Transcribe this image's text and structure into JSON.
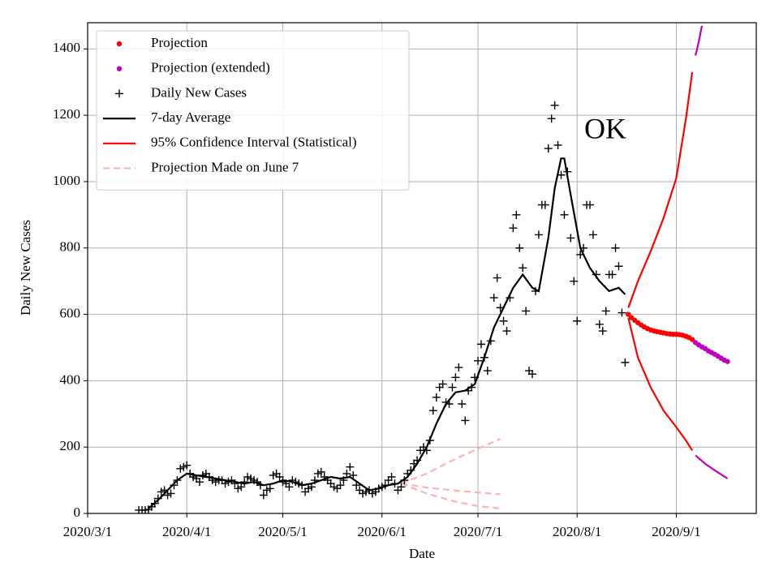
{
  "chart_data": {
    "type": "line",
    "annotation": "OK",
    "xlabel": "Date",
    "ylabel": "Daily New Cases",
    "xlim": [
      "2020/3/1",
      "2020/9/26"
    ],
    "xticks": [
      "2020/3/1",
      "2020/4/1",
      "2020/5/1",
      "2020/6/1",
      "2020/7/1",
      "2020/8/1",
      "2020/9/1"
    ],
    "ylim": [
      0,
      1479
    ],
    "yticks": [
      0,
      200,
      400,
      600,
      800,
      1000,
      1200,
      1400
    ],
    "grid": true,
    "legend": "upper left",
    "series": [
      {
        "name": "Projection",
        "color": "#ff0000",
        "style": "dot",
        "x": [
          "2020/8/17",
          "2020/8/18",
          "2020/8/19",
          "2020/8/20",
          "2020/8/21",
          "2020/8/22",
          "2020/8/23",
          "2020/8/24",
          "2020/8/25",
          "2020/8/26",
          "2020/8/27",
          "2020/8/28",
          "2020/8/29",
          "2020/8/30",
          "2020/8/31",
          "2020/9/1",
          "2020/9/2",
          "2020/9/3",
          "2020/9/4",
          "2020/9/5",
          "2020/9/6"
        ],
        "values": [
          600,
          590,
          582,
          575,
          568,
          562,
          557,
          553,
          550,
          548,
          546,
          544,
          542,
          541,
          540,
          540,
          539,
          537,
          534,
          530,
          524
        ]
      },
      {
        "name": "Projection (extended)",
        "color": "#bf00bf",
        "style": "dot",
        "x": [
          "2020/9/7",
          "2020/9/8",
          "2020/9/9",
          "2020/9/10",
          "2020/9/11",
          "2020/9/12",
          "2020/9/13",
          "2020/9/14",
          "2020/9/15",
          "2020/9/16",
          "2020/9/17"
        ],
        "values": [
          515,
          508,
          502,
          497,
          490,
          485,
          480,
          474,
          468,
          462,
          458
        ]
      },
      {
        "name": "Daily New Cases",
        "color": "#000000",
        "style": "plus",
        "x": [
          "2020/3/17",
          "2020/3/18",
          "2020/3/19",
          "2020/3/20",
          "2020/3/21",
          "2020/3/22",
          "2020/3/23",
          "2020/3/24",
          "2020/3/25",
          "2020/3/26",
          "2020/3/27",
          "2020/3/28",
          "2020/3/29",
          "2020/3/30",
          "2020/3/31",
          "2020/4/1",
          "2020/4/2",
          "2020/4/3",
          "2020/4/4",
          "2020/4/5",
          "2020/4/6",
          "2020/4/7",
          "2020/4/8",
          "2020/4/9",
          "2020/4/10",
          "2020/4/11",
          "2020/4/12",
          "2020/4/13",
          "2020/4/14",
          "2020/4/15",
          "2020/4/16",
          "2020/4/17",
          "2020/4/18",
          "2020/4/19",
          "2020/4/20",
          "2020/4/21",
          "2020/4/22",
          "2020/4/23",
          "2020/4/24",
          "2020/4/25",
          "2020/4/26",
          "2020/4/27",
          "2020/4/28",
          "2020/4/29",
          "2020/4/30",
          "2020/5/1",
          "2020/5/2",
          "2020/5/3",
          "2020/5/4",
          "2020/5/5",
          "2020/5/6",
          "2020/5/7",
          "2020/5/8",
          "2020/5/9",
          "2020/5/10",
          "2020/5/11",
          "2020/5/12",
          "2020/5/13",
          "2020/5/14",
          "2020/5/15",
          "2020/5/16",
          "2020/5/17",
          "2020/5/18",
          "2020/5/19",
          "2020/5/20",
          "2020/5/21",
          "2020/5/22",
          "2020/5/23",
          "2020/5/24",
          "2020/5/25",
          "2020/5/26",
          "2020/5/27",
          "2020/5/28",
          "2020/5/29",
          "2020/5/30",
          "2020/5/31",
          "2020/6/1",
          "2020/6/2",
          "2020/6/3",
          "2020/6/4",
          "2020/6/5",
          "2020/6/6",
          "2020/6/7",
          "2020/6/8",
          "2020/6/9",
          "2020/6/10",
          "2020/6/11",
          "2020/6/12",
          "2020/6/13",
          "2020/6/14",
          "2020/6/15",
          "2020/6/16",
          "2020/6/17",
          "2020/6/18",
          "2020/6/19",
          "2020/6/20",
          "2020/6/21",
          "2020/6/22",
          "2020/6/23",
          "2020/6/24",
          "2020/6/25",
          "2020/6/26",
          "2020/6/27",
          "2020/6/28",
          "2020/6/29",
          "2020/6/30",
          "2020/7/1",
          "2020/7/2",
          "2020/7/3",
          "2020/7/4",
          "2020/7/5",
          "2020/7/6",
          "2020/7/7",
          "2020/7/8",
          "2020/7/9",
          "2020/7/10",
          "2020/7/11",
          "2020/7/12",
          "2020/7/13",
          "2020/7/14",
          "2020/7/15",
          "2020/7/16",
          "2020/7/17",
          "2020/7/18",
          "2020/7/19",
          "2020/7/20",
          "2020/7/21",
          "2020/7/22",
          "2020/7/23",
          "2020/7/24",
          "2020/7/25",
          "2020/7/26",
          "2020/7/27",
          "2020/7/28",
          "2020/7/29",
          "2020/7/30",
          "2020/7/31",
          "2020/8/1",
          "2020/8/2",
          "2020/8/3",
          "2020/8/4",
          "2020/8/5",
          "2020/8/6",
          "2020/8/7",
          "2020/8/8",
          "2020/8/9",
          "2020/8/10",
          "2020/8/11",
          "2020/8/12",
          "2020/8/13",
          "2020/8/14",
          "2020/8/15",
          "2020/8/16"
        ],
        "values": [
          10,
          10,
          10,
          12,
          20,
          30,
          45,
          65,
          70,
          55,
          60,
          85,
          100,
          135,
          140,
          145,
          120,
          110,
          105,
          95,
          115,
          120,
          110,
          100,
          95,
          100,
          100,
          90,
          95,
          100,
          90,
          75,
          80,
          95,
          110,
          105,
          100,
          95,
          85,
          55,
          70,
          75,
          115,
          120,
          110,
          95,
          90,
          80,
          100,
          95,
          90,
          85,
          65,
          75,
          80,
          100,
          120,
          125,
          110,
          100,
          90,
          80,
          75,
          85,
          100,
          120,
          140,
          115,
          85,
          70,
          60,
          65,
          70,
          60,
          65,
          75,
          80,
          85,
          100,
          110,
          90,
          70,
          80,
          100,
          120,
          130,
          150,
          160,
          190,
          200,
          190,
          220,
          310,
          350,
          380,
          390,
          335,
          330,
          380,
          410,
          440,
          330,
          280,
          370,
          380,
          410,
          460,
          510,
          470,
          430,
          520,
          650,
          710,
          620,
          580,
          550,
          650,
          860,
          900,
          800,
          740,
          610,
          430,
          420,
          670,
          840,
          930,
          930,
          1100,
          1190,
          1230,
          1110,
          1020,
          900,
          1030,
          830,
          700,
          580,
          780,
          800,
          930,
          930,
          840,
          720,
          570,
          550,
          610,
          720,
          720,
          800,
          745,
          605,
          455
        ]
      },
      {
        "name": "7-day Average",
        "color": "#000000",
        "style": "line",
        "x": [
          "2020/3/20",
          "2020/3/23",
          "2020/3/26",
          "2020/3/29",
          "2020/4/1",
          "2020/4/4",
          "2020/4/7",
          "2020/4/10",
          "2020/4/13",
          "2020/4/16",
          "2020/4/19",
          "2020/4/22",
          "2020/4/25",
          "2020/4/28",
          "2020/5/1",
          "2020/5/4",
          "2020/5/7",
          "2020/5/10",
          "2020/5/13",
          "2020/5/16",
          "2020/5/19",
          "2020/5/22",
          "2020/5/25",
          "2020/5/28",
          "2020/5/31",
          "2020/6/3",
          "2020/6/6",
          "2020/6/9",
          "2020/6/12",
          "2020/6/15",
          "2020/6/18",
          "2020/6/21",
          "2020/6/24",
          "2020/6/27",
          "2020/6/30",
          "2020/7/3",
          "2020/7/6",
          "2020/7/9",
          "2020/7/12",
          "2020/7/15",
          "2020/7/18",
          "2020/7/20",
          "2020/7/23",
          "2020/7/25",
          "2020/7/27",
          "2020/7/28",
          "2020/7/30",
          "2020/8/2",
          "2020/8/5",
          "2020/8/8",
          "2020/8/11",
          "2020/8/14",
          "2020/8/16"
        ],
        "values": [
          15,
          40,
          70,
          100,
          120,
          115,
          110,
          105,
          100,
          95,
          90,
          95,
          85,
          90,
          100,
          95,
          85,
          90,
          100,
          110,
          105,
          110,
          90,
          70,
          75,
          85,
          90,
          110,
          150,
          200,
          270,
          330,
          365,
          370,
          390,
          470,
          560,
          620,
          680,
          720,
          680,
          670,
          830,
          980,
          1070,
          1070,
          960,
          800,
          740,
          700,
          670,
          680,
          660
        ]
      },
      {
        "name": "95% Confidence Interval (Statistical)",
        "color": "#ff0000",
        "style": "line",
        "x": [
          "2020/8/17",
          "2020/8/20",
          "2020/8/24",
          "2020/8/28",
          "2020/9/1",
          "2020/9/4",
          "2020/9/6"
        ],
        "values": [
          620,
          700,
          790,
          890,
          1010,
          1190,
          1330
        ]
      },
      {
        "name": "Projection Made on June 7",
        "color": "#ffb3b3",
        "style": "dashed",
        "x": [
          "2020/6/7",
          "2020/6/15",
          "2020/6/23",
          "2020/7/1",
          "2020/7/8"
        ],
        "values": [
          90,
          120,
          160,
          195,
          225
        ]
      },
      {
        "color": "#ff0000",
        "style": "line",
        "x": [
          "2020/8/17",
          "2020/8/20",
          "2020/8/24",
          "2020/8/28",
          "2020/9/1",
          "2020/9/4",
          "2020/9/6"
        ],
        "values": [
          590,
          470,
          380,
          310,
          260,
          220,
          190
        ]
      },
      {
        "color": "#bf00bf",
        "style": "line",
        "x": [
          "2020/9/7",
          "2020/9/8",
          "2020/9/9"
        ],
        "values": [
          1380,
          1420,
          1470
        ]
      },
      {
        "color": "#bf00bf",
        "style": "line",
        "x": [
          "2020/9/7",
          "2020/9/10",
          "2020/9/13",
          "2020/9/17"
        ],
        "values": [
          175,
          150,
          130,
          105
        ]
      },
      {
        "color": "#ffb3b3",
        "style": "dashed",
        "x": [
          "2020/6/7",
          "2020/6/15",
          "2020/6/23",
          "2020/7/1",
          "2020/7/8"
        ],
        "values": [
          90,
          78,
          70,
          63,
          58
        ]
      },
      {
        "color": "#ffb3b3",
        "style": "dashed",
        "x": [
          "2020/6/7",
          "2020/6/15",
          "2020/6/23",
          "2020/7/1",
          "2020/7/8"
        ],
        "values": [
          90,
          60,
          38,
          22,
          15
        ]
      }
    ]
  }
}
